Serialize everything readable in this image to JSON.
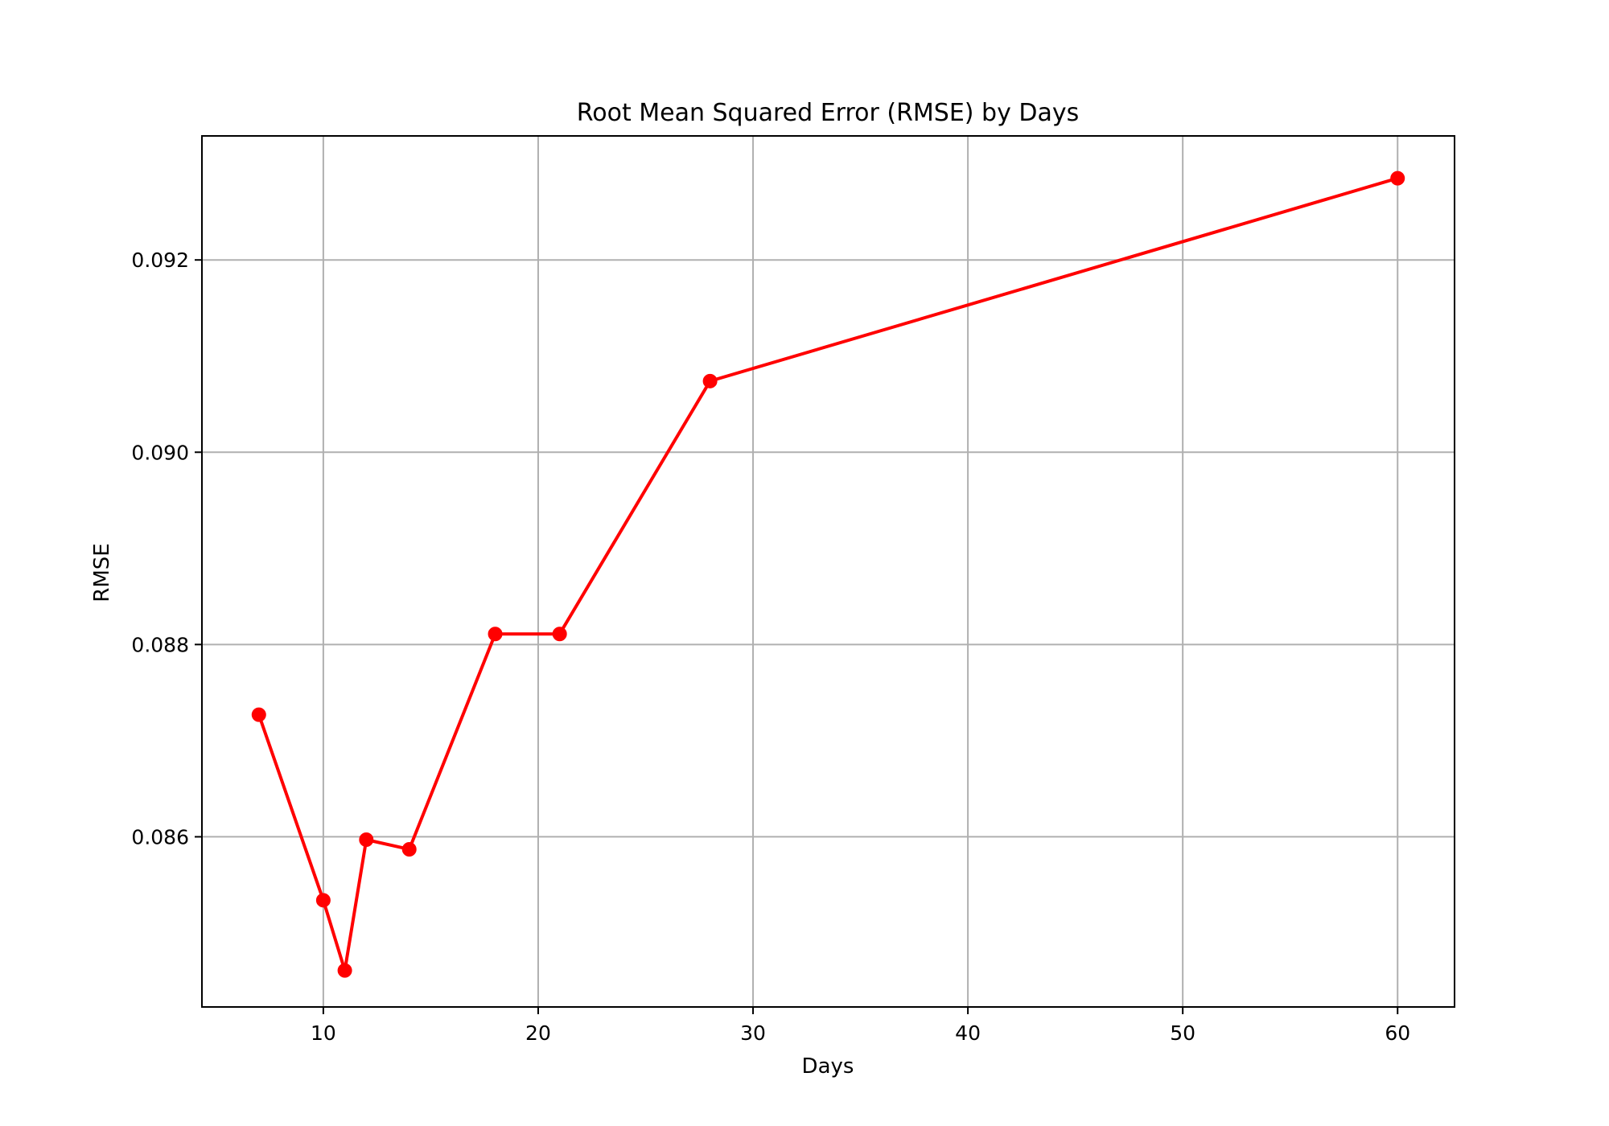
{
  "chart_data": {
    "type": "line",
    "title": "Root Mean Squared Error (RMSE) by Days",
    "xlabel": "Days",
    "ylabel": "RMSE",
    "x_ticks": [
      10,
      20,
      30,
      40,
      50,
      60
    ],
    "y_ticks": [
      0.086,
      0.088,
      0.09,
      0.092
    ],
    "x_tick_labels": [
      "10",
      "20",
      "30",
      "40",
      "50",
      "60"
    ],
    "y_tick_labels": [
      "0.086",
      "0.088",
      "0.090",
      "0.092"
    ],
    "xlim": [
      4.35,
      62.65
    ],
    "ylim": [
      0.08423,
      0.09329
    ],
    "grid": true,
    "color": "#ff0000",
    "series": [
      {
        "x": [
          7,
          10,
          11,
          12,
          14,
          18,
          21,
          28,
          60
        ],
        "y": [
          0.08727,
          0.08534,
          0.08461,
          0.08597,
          0.08587,
          0.08811,
          0.08811,
          0.09074,
          0.09285
        ]
      }
    ]
  }
}
